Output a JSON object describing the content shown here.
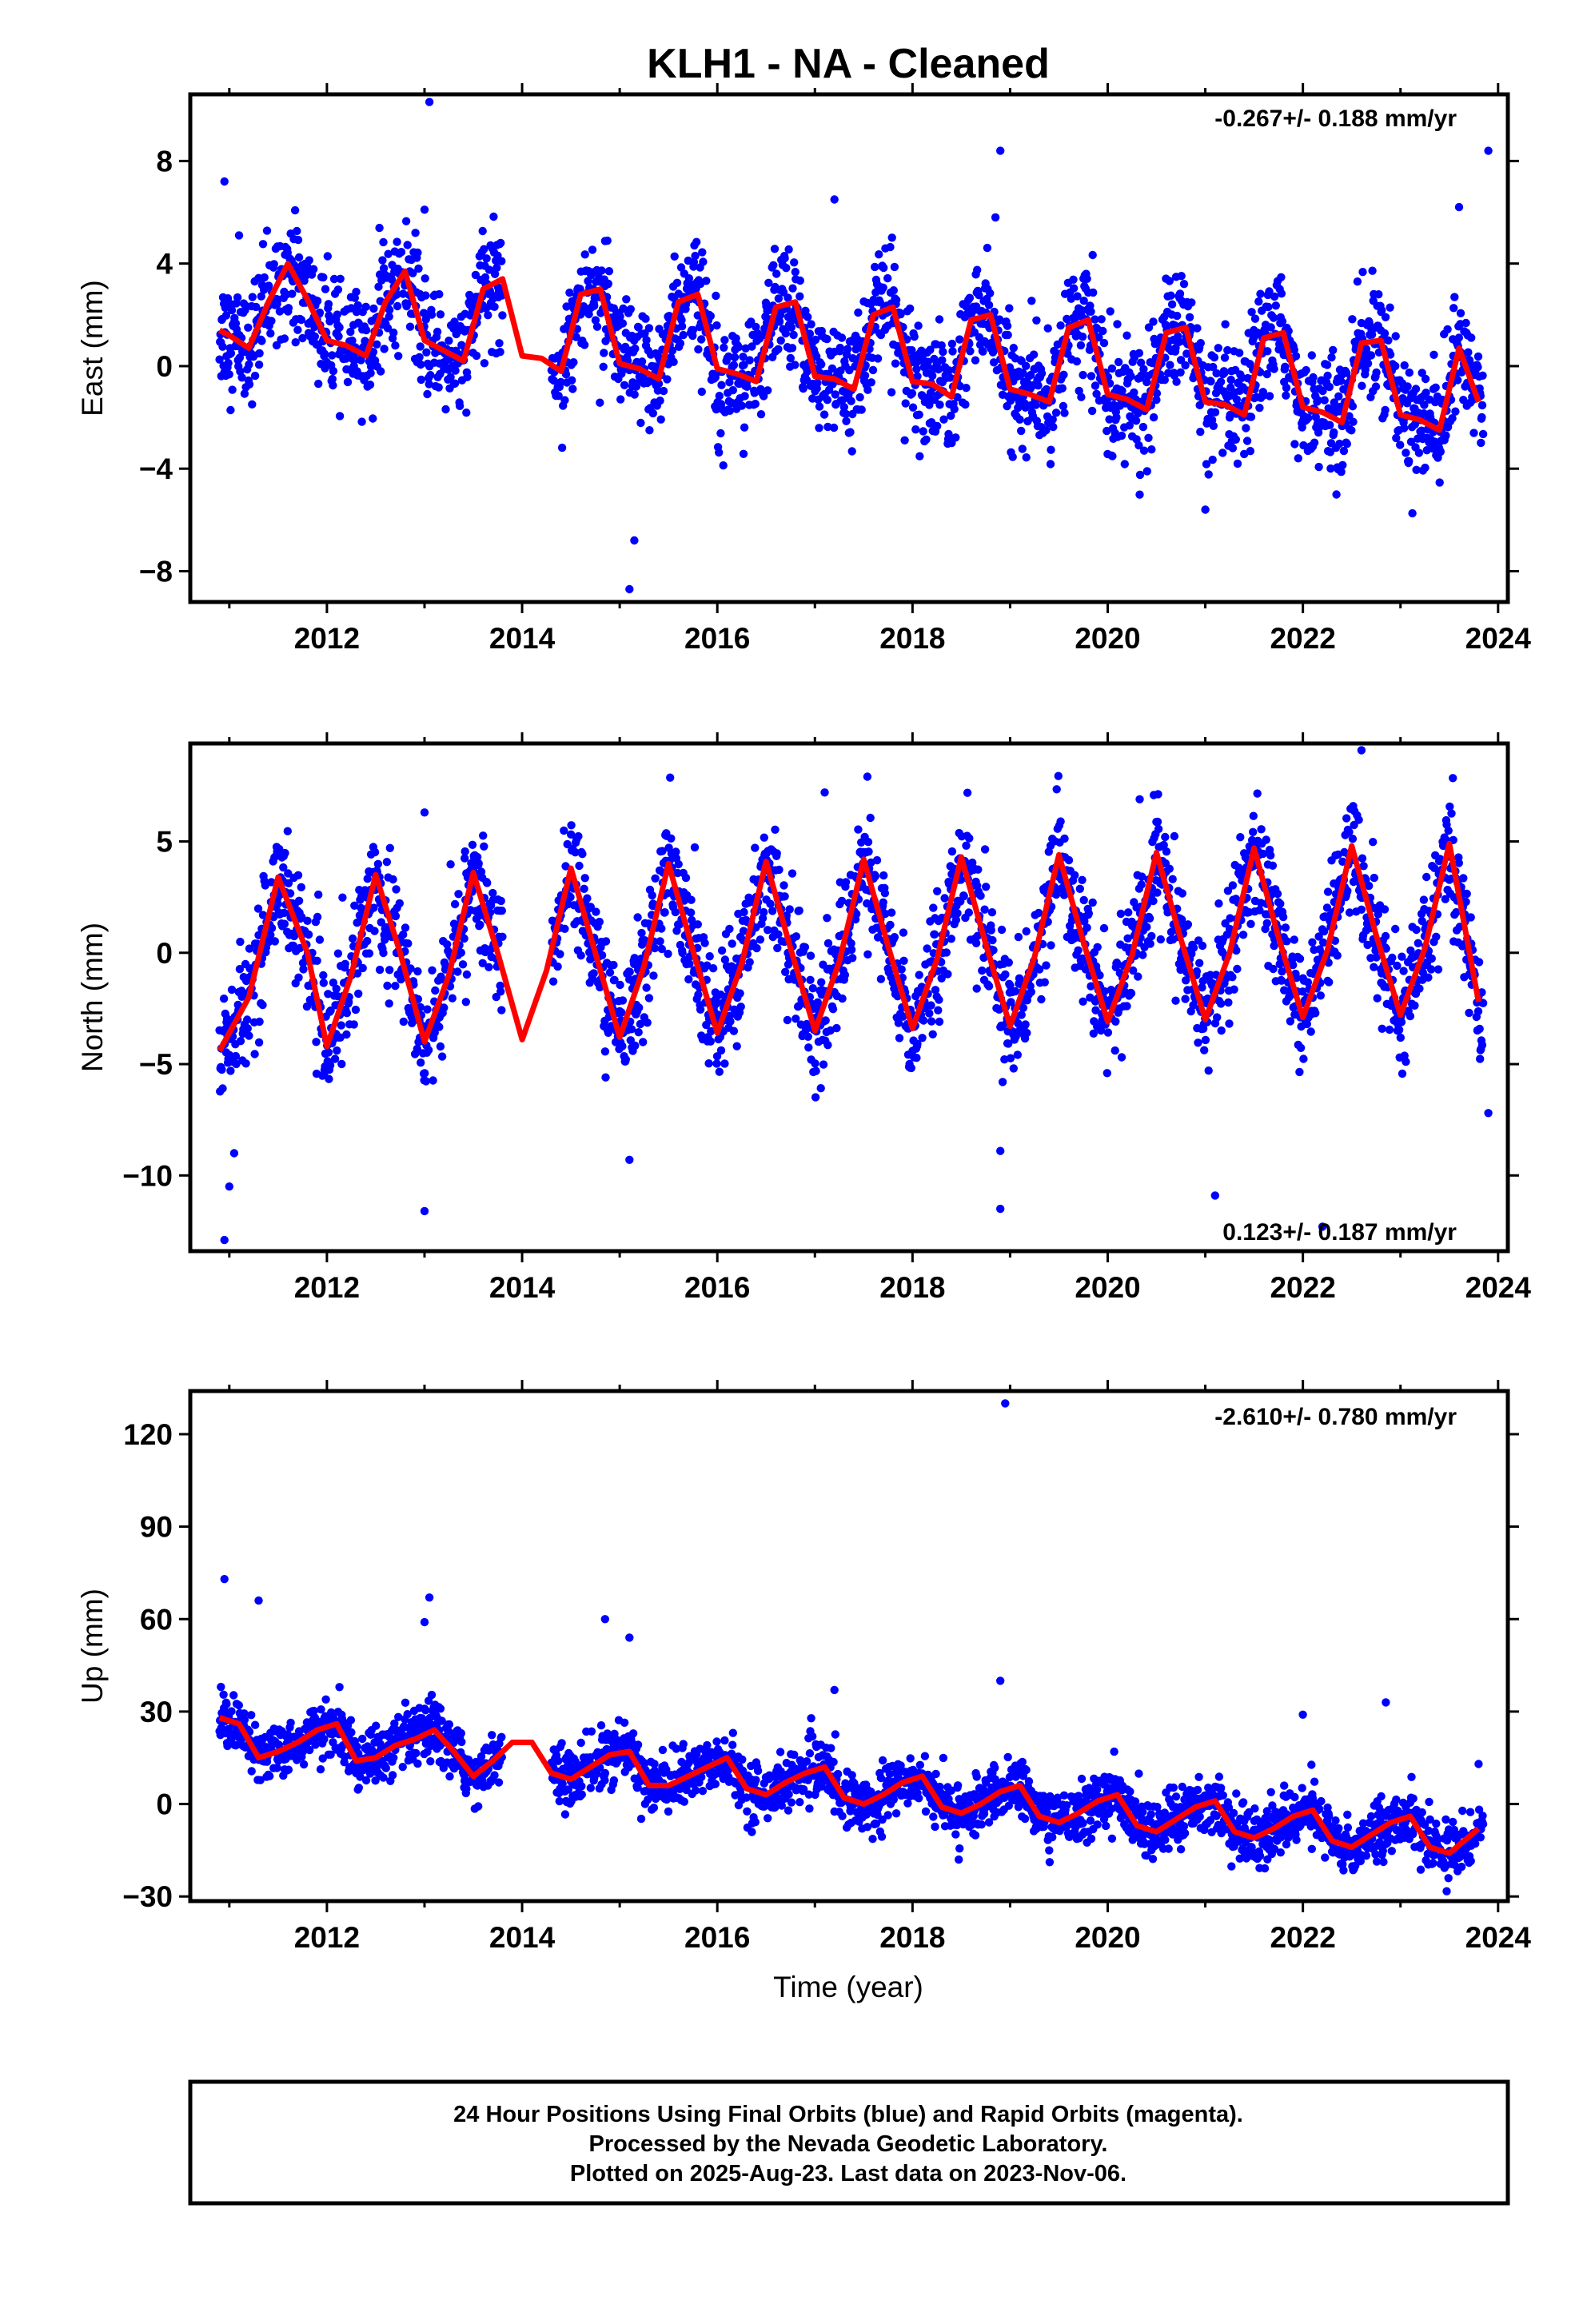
{
  "title": "KLH1  - NA - Cleaned",
  "colors": {
    "points": "#0000ff",
    "fit": "#ff0000",
    "frame": "#000000"
  },
  "xlabel": "Time (year)",
  "footer": {
    "line1": "24 Hour Positions Using Final Orbits (blue) and Rapid Orbits (magenta).",
    "line2": "Processed by the Nevada Geodetic Laboratory.",
    "line3": "Plotted on 2025-Aug-23. Last data on 2023-Nov-06."
  },
  "chart_data": [
    {
      "type": "scatter",
      "component": "East",
      "ylabel": "East (mm)",
      "rate_label": "-0.267+/- 0.188 mm/yr",
      "xlim": [
        2010.6,
        2024.1
      ],
      "ylim": [
        -9.2,
        10.6
      ],
      "x_ticks": [
        2012,
        2014,
        2016,
        2018,
        2020,
        2022,
        2024
      ],
      "y_ticks": [
        -8,
        -4,
        0,
        4,
        8
      ],
      "series": [
        {
          "kind": "fit",
          "trend": -0.267,
          "offset": 1.5,
          "amplitude": 1.7,
          "phase": 1.6,
          "gap": [
            2013.8,
            2014.3
          ],
          "x": [
            2010.9,
            2011.0,
            2011.2,
            2011.4,
            2011.6,
            2011.8,
            2012.0,
            2012.2,
            2012.4,
            2012.6,
            2012.8,
            2013.0,
            2013.2,
            2013.4,
            2013.6,
            2013.8,
            2014.0,
            2014.2,
            2014.4,
            2014.6,
            2014.8,
            2015.0,
            2015.2,
            2015.4,
            2015.6,
            2015.8,
            2016.0,
            2016.2,
            2016.4,
            2016.6,
            2016.8,
            2017.0,
            2017.2,
            2017.4,
            2017.6,
            2017.8,
            2018.0,
            2018.2,
            2018.4,
            2018.6,
            2018.8,
            2019.0,
            2019.2,
            2019.4,
            2019.6,
            2019.8,
            2020.0,
            2020.2,
            2020.4,
            2020.6,
            2020.8,
            2021.0,
            2021.2,
            2021.4,
            2021.6,
            2021.8,
            2022.0,
            2022.2,
            2022.4,
            2022.6,
            2022.8,
            2023.0,
            2023.2,
            2023.4,
            2023.6,
            2023.8
          ],
          "y": [
            1.4,
            1.2,
            0.7,
            2.5,
            4.0,
            2.6,
            1.0,
            0.8,
            0.4,
            2.5,
            3.7,
            1.0,
            0.6,
            0.2,
            3.0,
            3.4,
            0.4,
            0.3,
            -0.2,
            2.8,
            3.0,
            0.1,
            -0.1,
            -0.5,
            2.5,
            2.8,
            -0.1,
            -0.3,
            -0.6,
            2.3,
            2.5,
            -0.4,
            -0.5,
            -0.9,
            2.0,
            2.3,
            -0.6,
            -0.7,
            -1.2,
            1.8,
            2.0,
            -0.9,
            -1.1,
            -1.4,
            1.5,
            1.8,
            -1.1,
            -1.3,
            -1.7,
            1.3,
            1.5,
            -1.4,
            -1.5,
            -1.9,
            1.1,
            1.3,
            -1.6,
            -1.8,
            -2.2,
            0.9,
            1.0,
            -1.9,
            -2.1,
            -2.5,
            0.7,
            -1.4
          ]
        },
        {
          "kind": "points",
          "noise": 1.1,
          "outliers": [
            [
              2010.95,
              7.2
            ],
            [
              2011.1,
              5.1
            ],
            [
              2013.05,
              10.3
            ],
            [
              2013.0,
              6.1
            ],
            [
              2015.1,
              -8.7
            ],
            [
              2015.15,
              -6.8
            ],
            [
              2017.2,
              6.5
            ],
            [
              2018.9,
              8.4
            ],
            [
              2023.9,
              8.4
            ],
            [
              2021.0,
              -5.6
            ],
            [
              2018.85,
              5.8
            ],
            [
              2023.6,
              6.2
            ]
          ]
        }
      ]
    },
    {
      "type": "scatter",
      "component": "North",
      "ylabel": "North (mm)",
      "rate_label": "0.123+/- 0.187 mm/yr",
      "xlim": [
        2010.6,
        2024.1
      ],
      "ylim": [
        -13.4,
        9.4
      ],
      "x_ticks": [
        2012,
        2014,
        2016,
        2018,
        2020,
        2022,
        2024
      ],
      "y_ticks": [
        -10,
        -5,
        0,
        5
      ],
      "series": [
        {
          "kind": "fit",
          "trend": 0.123,
          "offset": 0.0,
          "amplitude": 3.8,
          "phase": 0.0,
          "gap": [
            2013.8,
            2014.3
          ],
          "x": [
            2010.9,
            2011.2,
            2011.5,
            2011.8,
            2012.0,
            2012.25,
            2012.5,
            2012.75,
            2013.0,
            2013.25,
            2013.5,
            2013.75,
            2014.0,
            2014.25,
            2014.5,
            2014.75,
            2015.0,
            2015.25,
            2015.5,
            2015.75,
            2016.0,
            2016.25,
            2016.5,
            2016.75,
            2017.0,
            2017.25,
            2017.5,
            2017.75,
            2018.0,
            2018.25,
            2018.5,
            2018.75,
            2019.0,
            2019.25,
            2019.5,
            2019.75,
            2020.0,
            2020.25,
            2020.5,
            2020.75,
            2021.0,
            2021.25,
            2021.5,
            2021.75,
            2022.0,
            2022.25,
            2022.5,
            2022.75,
            2023.0,
            2023.25,
            2023.5,
            2023.8
          ],
          "y": [
            -4.4,
            -2.0,
            3.4,
            0.0,
            -4.2,
            -1.0,
            3.5,
            0.0,
            -4.0,
            -1.0,
            3.6,
            0.0,
            -3.9,
            -0.8,
            3.8,
            0.0,
            -3.8,
            -0.6,
            4.0,
            0.1,
            -3.6,
            -0.5,
            4.1,
            0.2,
            -3.5,
            -0.4,
            4.2,
            0.3,
            -3.4,
            -0.3,
            4.3,
            0.4,
            -3.3,
            -0.2,
            4.4,
            0.5,
            -3.1,
            -0.1,
            4.5,
            0.6,
            -3.0,
            0.0,
            4.7,
            0.7,
            -2.9,
            0.1,
            4.8,
            0.8,
            -2.8,
            0.2,
            4.9,
            -2.2
          ]
        },
        {
          "kind": "points",
          "noise": 1.3,
          "outliers": [
            [
              2010.95,
              -12.9
            ],
            [
              2011.0,
              -10.5
            ],
            [
              2011.05,
              -9.0
            ],
            [
              2013.0,
              6.3
            ],
            [
              2013.0,
              -11.6
            ],
            [
              2015.1,
              -9.3
            ],
            [
              2017.1,
              7.2
            ],
            [
              2018.9,
              -11.5
            ],
            [
              2018.9,
              -8.9
            ],
            [
              2021.1,
              -10.9
            ],
            [
              2022.6,
              9.1
            ],
            [
              2023.9,
              -7.2
            ],
            [
              2022.2,
              -12.3
            ]
          ]
        }
      ]
    },
    {
      "type": "scatter",
      "component": "Up",
      "ylabel": "Up (mm)",
      "rate_label": "-2.610+/- 0.780 mm/yr",
      "xlim": [
        2010.6,
        2024.1
      ],
      "ylim": [
        -31.5,
        134
      ],
      "x_ticks": [
        2012,
        2014,
        2016,
        2018,
        2020,
        2022,
        2024
      ],
      "y_ticks": [
        -30,
        0,
        30,
        60,
        90,
        120
      ],
      "series": [
        {
          "kind": "fit",
          "trend": -2.61,
          "offset": 27,
          "amplitude": 4.5,
          "phase": 3.0,
          "gap": [
            2013.8,
            2014.3
          ],
          "x": [
            2010.9,
            2011.1,
            2011.3,
            2011.5,
            2011.7,
            2011.9,
            2012.1,
            2012.3,
            2012.5,
            2012.7,
            2012.9,
            2013.1,
            2013.3,
            2013.5,
            2013.7,
            2013.9,
            2014.1,
            2014.3,
            2014.5,
            2014.7,
            2014.9,
            2015.1,
            2015.3,
            2015.5,
            2015.7,
            2015.9,
            2016.1,
            2016.3,
            2016.5,
            2016.7,
            2016.9,
            2017.1,
            2017.3,
            2017.5,
            2017.7,
            2017.9,
            2018.1,
            2018.3,
            2018.5,
            2018.7,
            2018.9,
            2019.1,
            2019.3,
            2019.5,
            2019.7,
            2019.9,
            2020.1,
            2020.3,
            2020.5,
            2020.7,
            2020.9,
            2021.1,
            2021.3,
            2021.5,
            2021.7,
            2021.9,
            2022.1,
            2022.3,
            2022.5,
            2022.7,
            2022.9,
            2023.1,
            2023.3,
            2023.5,
            2023.8
          ],
          "y": [
            28,
            26,
            15,
            17,
            20,
            24,
            26,
            14,
            15,
            19,
            21,
            24,
            17,
            9,
            14,
            20,
            20,
            10,
            8,
            12,
            16,
            17,
            6,
            6,
            9,
            12,
            15,
            5,
            3,
            7,
            10,
            12,
            2,
            0,
            3,
            7,
            9,
            -1,
            -3,
            0,
            4,
            6,
            -4,
            -6,
            -3,
            1,
            3,
            -7,
            -9,
            -5,
            -1,
            1,
            -9,
            -11,
            -8,
            -4,
            -2,
            -12,
            -14,
            -10,
            -6,
            -4,
            -14,
            -16,
            -8
          ]
        },
        {
          "kind": "points",
          "noise": 4.5,
          "outliers": [
            [
              2010.95,
              73
            ],
            [
              2011.3,
              66
            ],
            [
              2013.05,
              67
            ],
            [
              2013.0,
              59
            ],
            [
              2014.85,
              60
            ],
            [
              2015.1,
              54
            ],
            [
              2018.95,
              130
            ],
            [
              2018.9,
              40
            ],
            [
              2017.2,
              37
            ],
            [
              2022.85,
              33
            ],
            [
              2022.0,
              29
            ],
            [
              2023.8,
              13
            ]
          ]
        }
      ]
    }
  ]
}
